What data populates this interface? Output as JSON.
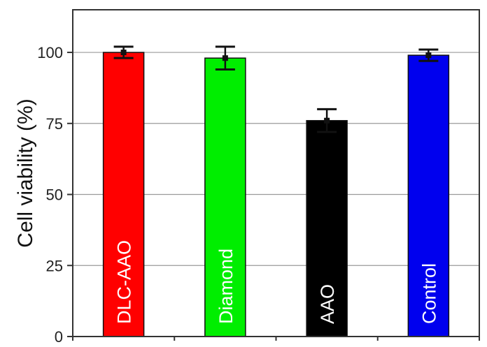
{
  "chart_data": {
    "type": "bar",
    "title": "",
    "xlabel": "",
    "ylabel": "Cell viability (%)",
    "ylim": [
      0,
      115
    ],
    "yticks": [
      0,
      25,
      50,
      75,
      100
    ],
    "grid": true,
    "categories": [
      "DLC-AAO",
      "Diamond",
      "AAO",
      "Control"
    ],
    "values": [
      100,
      98,
      76,
      99
    ],
    "errors": [
      2,
      4,
      4,
      2
    ],
    "colors": [
      "#ff0000",
      "#00ee00",
      "#000000",
      "#0000ee"
    ],
    "bar_label_colors": [
      "#ffffff",
      "#ffffff",
      "#ffffff",
      "#ffffff"
    ]
  }
}
